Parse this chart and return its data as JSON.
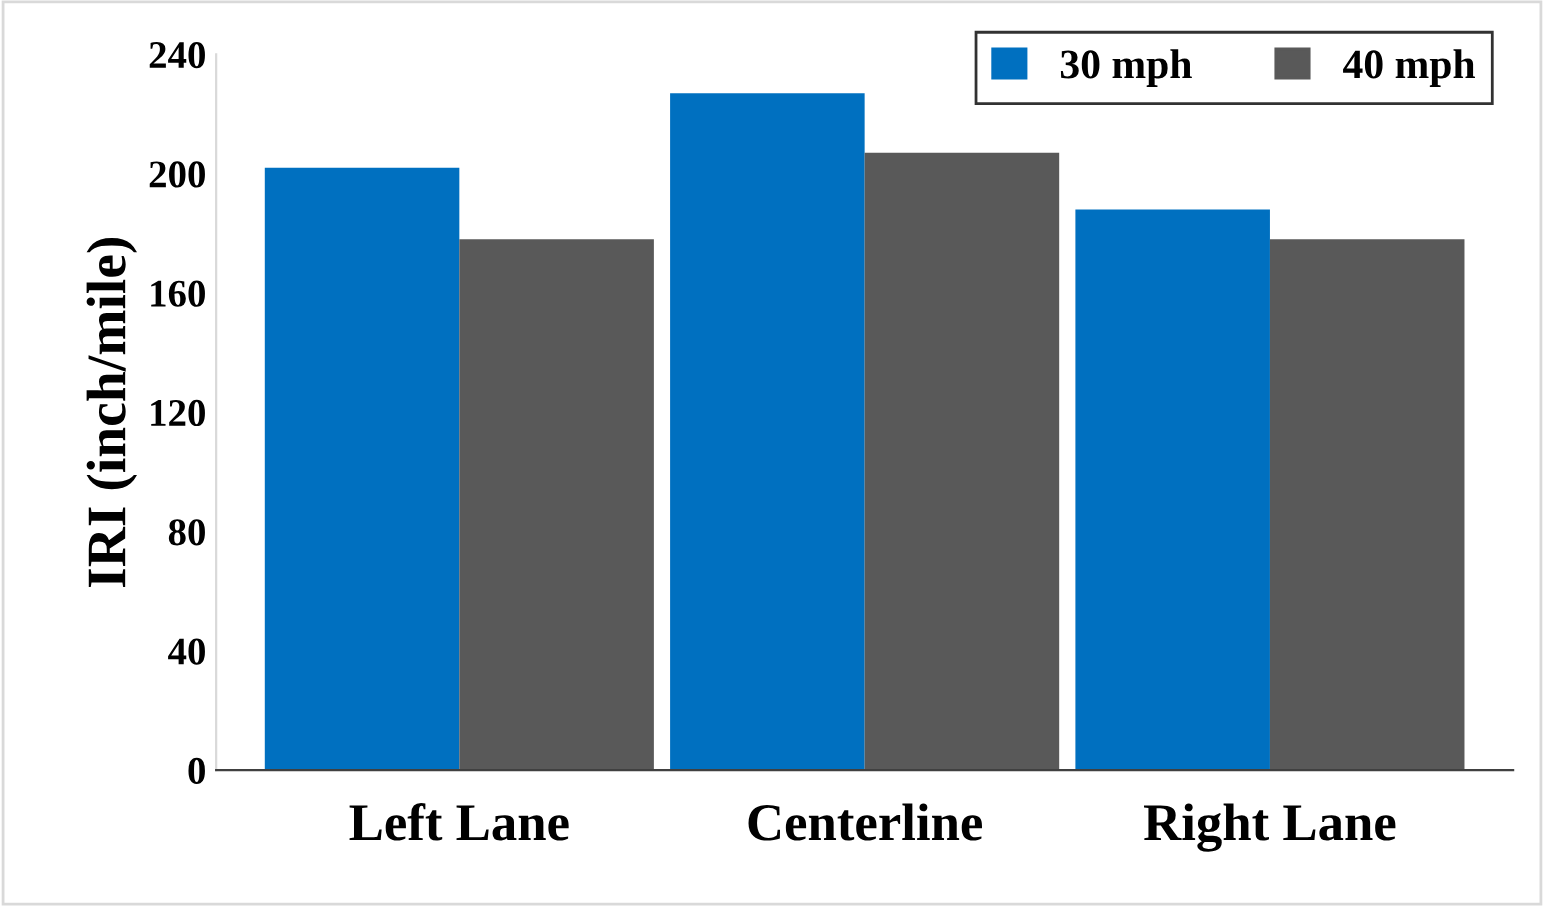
{
  "chart_data": {
    "type": "bar",
    "ylabel": "IRI (inch/mile)",
    "categories": [
      "Left Lane",
      "Centerline",
      "Right Lane"
    ],
    "series": [
      {
        "name": "30 mph",
        "color": "#0070c0",
        "values": [
          202,
          227,
          188
        ]
      },
      {
        "name": "40 mph",
        "color": "#595959",
        "values": [
          178,
          207,
          178
        ]
      }
    ],
    "ylim": [
      0,
      240
    ],
    "yticks": [
      0,
      40,
      80,
      120,
      160,
      200,
      240
    ],
    "grid": false,
    "legend": "top right"
  }
}
